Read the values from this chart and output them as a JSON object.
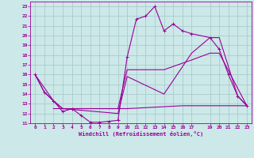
{
  "background_color": "#cce8e8",
  "grid_color": "#aacccc",
  "line_color": "#990099",
  "xlabel": "Windchill (Refroidissement éolien,°C)",
  "xlim": [
    -0.5,
    23.5
  ],
  "ylim": [
    11,
    23.5
  ],
  "xticks": [
    0,
    1,
    2,
    3,
    4,
    5,
    6,
    7,
    8,
    9,
    10,
    11,
    12,
    13,
    14,
    15,
    16,
    17,
    19,
    20,
    21,
    22,
    23
  ],
  "yticks": [
    11,
    12,
    13,
    14,
    15,
    16,
    17,
    18,
    19,
    20,
    21,
    22,
    23
  ],
  "s1_x": [
    0,
    1,
    2,
    3,
    4,
    5,
    6,
    7,
    8,
    9,
    10,
    11,
    12,
    13,
    14,
    15,
    16,
    17,
    19,
    20,
    21,
    22,
    23
  ],
  "s1_y": [
    16,
    14.2,
    13.3,
    12.2,
    12.5,
    11.8,
    11.1,
    11.1,
    11.2,
    11.3,
    17.8,
    21.7,
    22.0,
    23.0,
    20.5,
    21.2,
    20.5,
    20.2,
    19.8,
    18.6,
    16.0,
    13.8,
    12.8
  ],
  "s2_x": [
    0,
    1,
    2,
    3,
    9,
    10,
    14,
    17,
    19,
    20,
    22,
    23
  ],
  "s2_y": [
    16,
    14.2,
    13.3,
    12.5,
    12.0,
    15.8,
    14.0,
    18.2,
    19.8,
    19.8,
    13.8,
    12.8
  ],
  "s3_x": [
    0,
    2,
    3,
    9,
    10,
    14,
    17,
    19,
    20,
    23
  ],
  "s3_y": [
    16,
    13.3,
    12.5,
    12.5,
    16.5,
    16.5,
    17.5,
    18.2,
    18.2,
    12.8
  ],
  "s4_x": [
    2,
    3,
    4,
    9,
    10,
    16,
    19,
    23
  ],
  "s4_y": [
    12.5,
    12.5,
    12.5,
    12.5,
    12.5,
    12.8,
    12.8,
    12.8
  ]
}
